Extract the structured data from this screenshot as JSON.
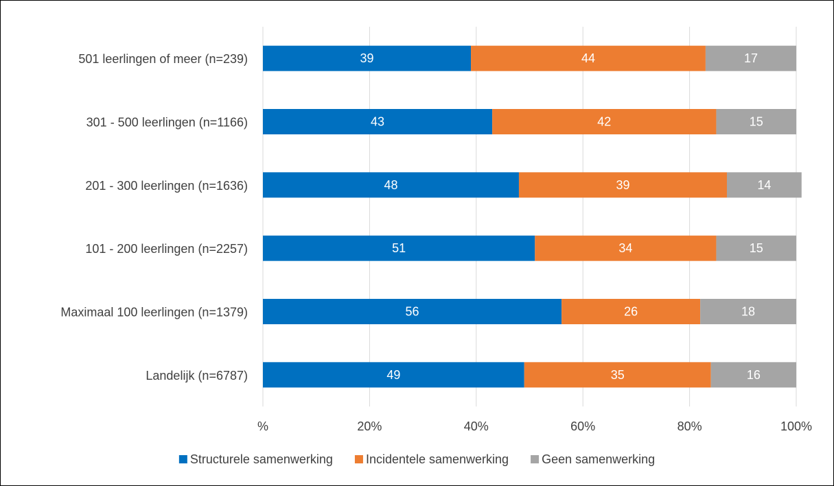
{
  "chart_data": {
    "type": "bar",
    "orientation": "horizontal",
    "stacked": true,
    "title": "",
    "xlabel": "",
    "ylabel": "",
    "xlim": [
      0,
      100
    ],
    "grid": true,
    "legend_position": "bottom",
    "x_ticks": [
      "%",
      "20%",
      "40%",
      "60%",
      "80%",
      "100%"
    ],
    "categories": [
      "501 leerlingen of meer (n=239)",
      "301 - 500 leerlingen (n=1166)",
      "201 - 300 leerlingen (n=1636)",
      "101 - 200 leerlingen (n=2257)",
      "Maximaal 100 leerlingen (n=1379)",
      "Landelijk (n=6787)"
    ],
    "series": [
      {
        "name": "Structurele samenwerking",
        "color": "#0070C0",
        "values": [
          39,
          43,
          48,
          51,
          56,
          49
        ]
      },
      {
        "name": "Incidentele samenwerking",
        "color": "#ED7D31",
        "values": [
          44,
          42,
          39,
          34,
          26,
          35
        ]
      },
      {
        "name": "Geen samenwerking",
        "color": "#A5A5A5",
        "values": [
          17,
          15,
          14,
          15,
          18,
          16
        ]
      }
    ]
  }
}
